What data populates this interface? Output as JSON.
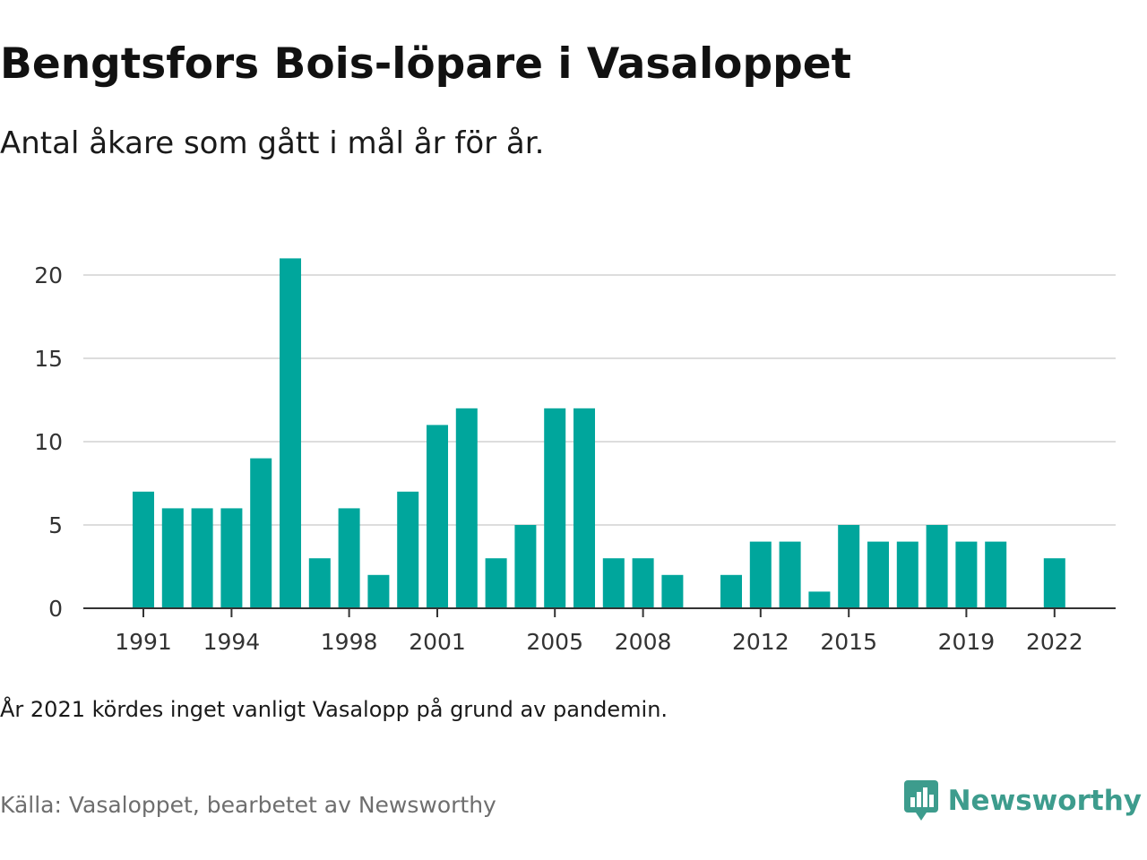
{
  "title": "Bengtsfors Bois-löpare i Vasaloppet",
  "subtitle": "Antal åkare som gått i mål år för år.",
  "note": "År 2021 kördes inget vanligt Vasalopp på grund av pandemin.",
  "source": "Källa: Vasaloppet, bearbetet av Newsworthy",
  "brand": {
    "name": "Newsworthy",
    "icon": "bar-chart-speech-bubble-icon",
    "color": "#3d9c8d"
  },
  "chart_data": {
    "type": "bar",
    "x": [
      1991,
      1992,
      1993,
      1994,
      1995,
      1996,
      1997,
      1998,
      1999,
      2000,
      2001,
      2002,
      2003,
      2004,
      2005,
      2006,
      2007,
      2008,
      2009,
      2010,
      2011,
      2012,
      2013,
      2014,
      2015,
      2016,
      2017,
      2018,
      2019,
      2020,
      2021,
      2022
    ],
    "values": [
      7,
      6,
      6,
      6,
      9,
      21,
      3,
      6,
      2,
      7,
      11,
      12,
      3,
      5,
      12,
      12,
      3,
      3,
      2,
      null,
      2,
      4,
      4,
      1,
      5,
      4,
      4,
      5,
      4,
      4,
      null,
      3
    ],
    "x_tick_labels": [
      "1991",
      "1994",
      "1998",
      "2001",
      "2005",
      "2008",
      "2012",
      "2015",
      "2019",
      "2022"
    ],
    "y_ticks": [
      0,
      5,
      10,
      15,
      20
    ],
    "ylim": [
      0,
      21
    ],
    "grid": "horizontal",
    "bar_color": "#00a69c",
    "grid_color": "#dddddd",
    "axis_color": "#333333"
  }
}
